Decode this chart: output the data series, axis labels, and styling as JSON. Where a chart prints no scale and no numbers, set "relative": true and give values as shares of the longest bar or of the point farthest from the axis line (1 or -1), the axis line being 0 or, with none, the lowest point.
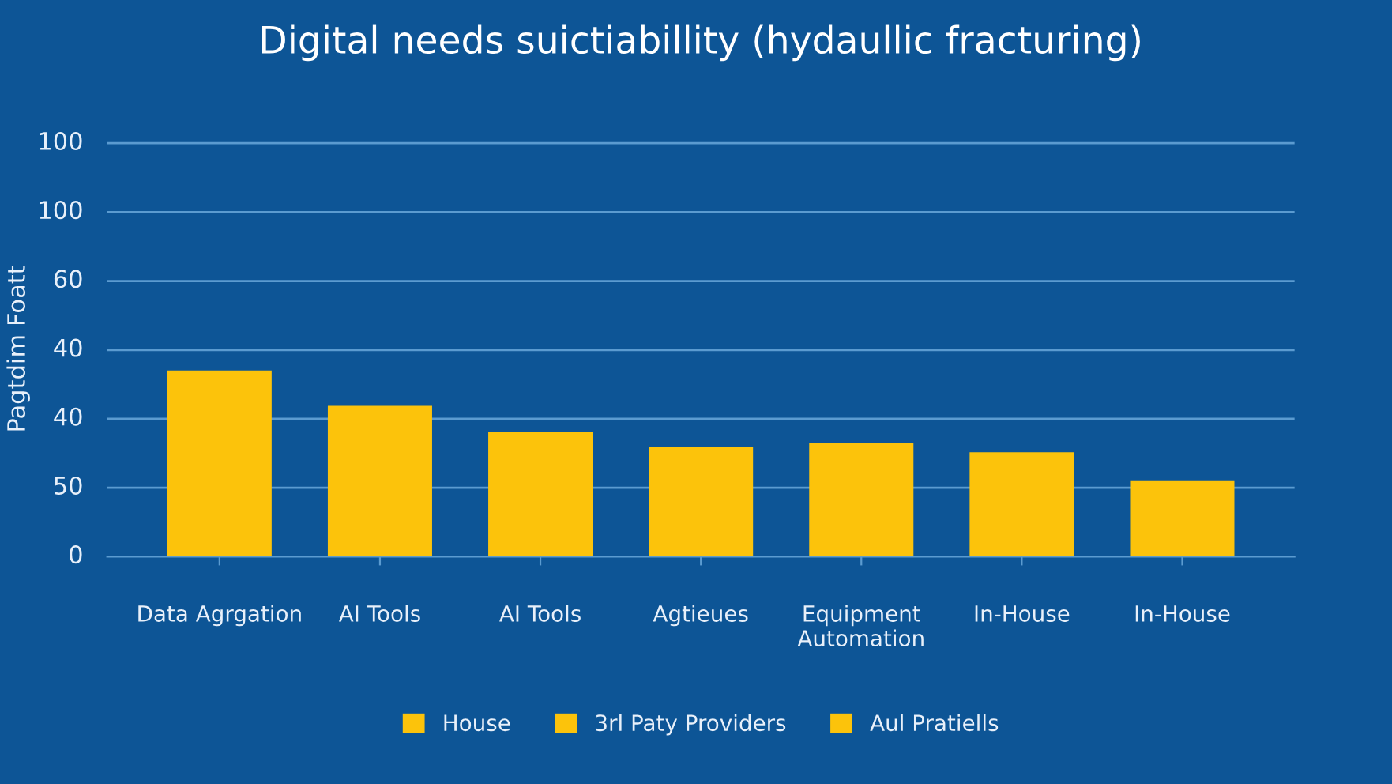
{
  "chart_data": {
    "type": "bar",
    "title": "Digital needs suictiabillity (hydaullic fracturing)",
    "ylabel": "Pagtdim Foatt",
    "categories": [
      "Data Agrgation",
      "AI Tools",
      "AI Tools",
      "Agtieues",
      "Equipment\nAutomation",
      "In-House",
      "In-House"
    ],
    "relative": true,
    "series": [
      {
        "name": "House",
        "color": "#fcc30b",
        "values": [
          1,
          0.81,
          0.67,
          0.59,
          0.61,
          0.56,
          0.41
        ]
      },
      {
        "name": "3rl Paty Providers",
        "color": "#fcc30b",
        "values": [
          null,
          null,
          null,
          null,
          null,
          null,
          null
        ]
      },
      {
        "name": "Aul Pratiells",
        "color": "#fcc30b",
        "values": [
          null,
          null,
          null,
          null,
          null,
          null,
          null
        ]
      }
    ],
    "ref_lines": [
      {
        "axis": "y",
        "value": 0,
        "color": "#5b9bd0"
      },
      {
        "axis": "y",
        "value": 0.37,
        "color": "#5b9bd0"
      },
      {
        "axis": "y",
        "value": 0.74,
        "color": "#5b9bd0"
      },
      {
        "axis": "y",
        "value": 1.11,
        "color": "#5b9bd0"
      },
      {
        "axis": "y",
        "value": 1.48,
        "color": "#5b9bd0"
      },
      {
        "axis": "y",
        "value": 1.85,
        "color": "#5b9bd0"
      },
      {
        "axis": "y",
        "value": 2.22,
        "color": "#5b9bd0"
      }
    ],
    "annotations": [
      "0",
      "50",
      "40",
      "40",
      "60",
      "100",
      "100"
    ],
    "legend": "bottom"
  }
}
